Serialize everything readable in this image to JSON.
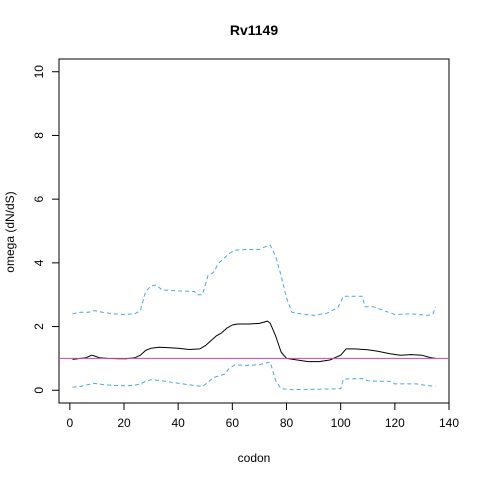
{
  "chart_data": {
    "type": "line",
    "title": "Rv1149",
    "xlabel": "codon",
    "ylabel": "omega (dN/dS)",
    "xlim": [
      -4,
      140
    ],
    "ylim": [
      -0.4,
      10.4
    ],
    "xticks": [
      0,
      20,
      40,
      60,
      80,
      100,
      120,
      140
    ],
    "yticks": [
      0,
      2,
      4,
      6,
      8,
      10
    ],
    "grid": false,
    "legend": "none",
    "reference_line": {
      "y": 1.0,
      "color": "#cc44aa"
    },
    "series": [
      {
        "role": "mean",
        "color": "#000000",
        "dash": "solid",
        "points": [
          [
            1,
            0.97
          ],
          [
            4,
            1.0
          ],
          [
            6,
            1.02
          ],
          [
            8,
            1.1
          ],
          [
            9,
            1.08
          ],
          [
            11,
            1.02
          ],
          [
            14,
            1.0
          ],
          [
            18,
            0.99
          ],
          [
            21,
            0.99
          ],
          [
            24,
            1.02
          ],
          [
            26,
            1.1
          ],
          [
            28,
            1.25
          ],
          [
            30,
            1.32
          ],
          [
            33,
            1.35
          ],
          [
            36,
            1.34
          ],
          [
            40,
            1.32
          ],
          [
            44,
            1.28
          ],
          [
            48,
            1.3
          ],
          [
            50,
            1.4
          ],
          [
            52,
            1.55
          ],
          [
            54,
            1.7
          ],
          [
            56,
            1.8
          ],
          [
            58,
            1.95
          ],
          [
            60,
            2.05
          ],
          [
            62,
            2.08
          ],
          [
            66,
            2.08
          ],
          [
            70,
            2.1
          ],
          [
            73,
            2.17
          ],
          [
            74,
            2.1
          ],
          [
            76,
            1.7
          ],
          [
            78,
            1.2
          ],
          [
            80,
            1.0
          ],
          [
            84,
            0.95
          ],
          [
            88,
            0.9
          ],
          [
            92,
            0.9
          ],
          [
            96,
            0.95
          ],
          [
            100,
            1.1
          ],
          [
            102,
            1.3
          ],
          [
            105,
            1.3
          ],
          [
            110,
            1.27
          ],
          [
            114,
            1.22
          ],
          [
            118,
            1.15
          ],
          [
            122,
            1.1
          ],
          [
            126,
            1.12
          ],
          [
            130,
            1.1
          ],
          [
            133,
            1.03
          ],
          [
            135,
            1.0
          ]
        ]
      },
      {
        "role": "upper-bound",
        "color": "#4aa8e0",
        "dash": "dashed",
        "points": [
          [
            1,
            2.4
          ],
          [
            4,
            2.45
          ],
          [
            7,
            2.45
          ],
          [
            9,
            2.5
          ],
          [
            12,
            2.45
          ],
          [
            16,
            2.4
          ],
          [
            20,
            2.38
          ],
          [
            24,
            2.4
          ],
          [
            26,
            2.5
          ],
          [
            28,
            3.1
          ],
          [
            30,
            3.28
          ],
          [
            32,
            3.3
          ],
          [
            34,
            3.15
          ],
          [
            40,
            3.12
          ],
          [
            46,
            3.1
          ],
          [
            47,
            3.0
          ],
          [
            49,
            3.0
          ],
          [
            51,
            3.6
          ],
          [
            53,
            3.7
          ],
          [
            55,
            4.0
          ],
          [
            57,
            4.15
          ],
          [
            59,
            4.3
          ],
          [
            61,
            4.4
          ],
          [
            65,
            4.42
          ],
          [
            70,
            4.42
          ],
          [
            72,
            4.5
          ],
          [
            74,
            4.55
          ],
          [
            76,
            4.2
          ],
          [
            78,
            3.6
          ],
          [
            80,
            2.9
          ],
          [
            82,
            2.45
          ],
          [
            85,
            2.4
          ],
          [
            90,
            2.35
          ],
          [
            95,
            2.42
          ],
          [
            99,
            2.6
          ],
          [
            101,
            2.95
          ],
          [
            108,
            2.95
          ],
          [
            109,
            2.62
          ],
          [
            112,
            2.62
          ],
          [
            116,
            2.5
          ],
          [
            120,
            2.38
          ],
          [
            126,
            2.4
          ],
          [
            132,
            2.35
          ],
          [
            134,
            2.38
          ],
          [
            135,
            2.62
          ]
        ]
      },
      {
        "role": "lower-bound",
        "color": "#4aa8e0",
        "dash": "dashed",
        "points": [
          [
            1,
            0.1
          ],
          [
            4,
            0.12
          ],
          [
            7,
            0.18
          ],
          [
            9,
            0.22
          ],
          [
            12,
            0.18
          ],
          [
            16,
            0.15
          ],
          [
            20,
            0.14
          ],
          [
            24,
            0.16
          ],
          [
            26,
            0.2
          ],
          [
            28,
            0.28
          ],
          [
            30,
            0.33
          ],
          [
            34,
            0.3
          ],
          [
            40,
            0.22
          ],
          [
            46,
            0.15
          ],
          [
            49,
            0.12
          ],
          [
            51,
            0.25
          ],
          [
            53,
            0.4
          ],
          [
            55,
            0.45
          ],
          [
            57,
            0.5
          ],
          [
            59,
            0.7
          ],
          [
            61,
            0.8
          ],
          [
            65,
            0.78
          ],
          [
            70,
            0.8
          ],
          [
            72,
            0.85
          ],
          [
            74,
            0.88
          ],
          [
            76,
            0.3
          ],
          [
            78,
            0.05
          ],
          [
            82,
            0.02
          ],
          [
            90,
            0.03
          ],
          [
            100,
            0.05
          ],
          [
            101,
            0.35
          ],
          [
            108,
            0.37
          ],
          [
            110,
            0.3
          ],
          [
            114,
            0.28
          ],
          [
            118,
            0.28
          ],
          [
            120,
            0.2
          ],
          [
            124,
            0.2
          ],
          [
            128,
            0.2
          ],
          [
            132,
            0.15
          ],
          [
            135,
            0.12
          ]
        ]
      }
    ]
  }
}
